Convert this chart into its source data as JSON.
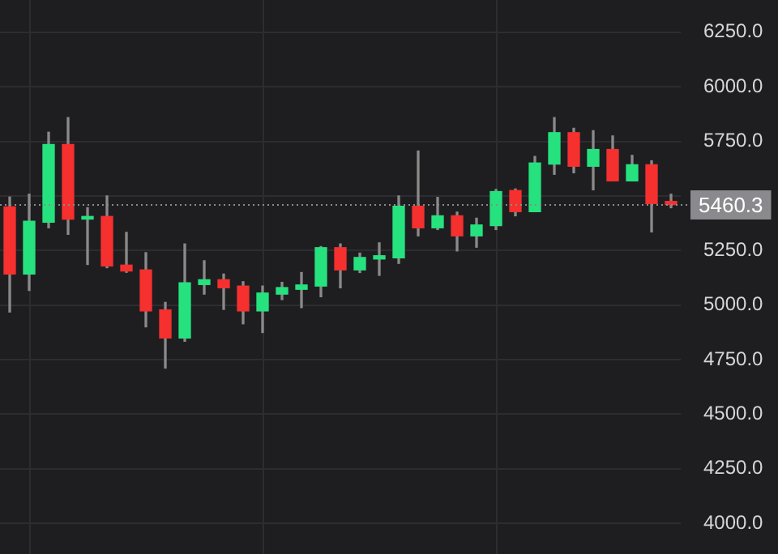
{
  "chart_data": {
    "type": "candlestick",
    "categories": [
      null,
      null,
      null,
      null,
      null,
      null,
      null,
      null,
      null,
      null,
      null,
      null,
      null,
      null,
      null,
      null,
      null,
      null,
      null,
      null,
      null,
      null,
      null,
      null,
      null,
      null,
      null,
      null,
      null,
      null,
      null,
      null,
      null,
      null,
      null
    ],
    "ohlc": [
      [
        5450,
        5495,
        4968,
        5142
      ],
      [
        5142,
        5508,
        5067,
        5384
      ],
      [
        5380,
        5792,
        5354,
        5736
      ],
      [
        5736,
        5859,
        5324,
        5394
      ],
      [
        5394,
        5446,
        5186,
        5406
      ],
      [
        5406,
        5500,
        5171,
        5179
      ],
      [
        5183,
        5333,
        5150,
        5156
      ],
      [
        5161,
        5240,
        4900,
        4973
      ],
      [
        4978,
        5012,
        4711,
        4849
      ],
      [
        4849,
        5280,
        4834,
        5102
      ],
      [
        5094,
        5203,
        5050,
        5116
      ],
      [
        5116,
        5142,
        4980,
        5079
      ],
      [
        5087,
        5107,
        4914,
        4973
      ],
      [
        4973,
        5087,
        4874,
        5055
      ],
      [
        5050,
        5104,
        5025,
        5080
      ],
      [
        5072,
        5149,
        4988,
        5092
      ],
      [
        5087,
        5268,
        5038,
        5263
      ],
      [
        5263,
        5280,
        5079,
        5161
      ],
      [
        5161,
        5238,
        5149,
        5218
      ],
      [
        5211,
        5285,
        5136,
        5226
      ],
      [
        5216,
        5500,
        5191,
        5453
      ],
      [
        5453,
        5706,
        5317,
        5354
      ],
      [
        5354,
        5493,
        5346,
        5409
      ],
      [
        5409,
        5426,
        5248,
        5317
      ],
      [
        5317,
        5398,
        5265,
        5367
      ],
      [
        5364,
        5530,
        5346,
        5520
      ],
      [
        5525,
        5532,
        5409,
        5428
      ],
      [
        5428,
        5681,
        5428,
        5651
      ],
      [
        5646,
        5859,
        5599,
        5790
      ],
      [
        5790,
        5810,
        5606,
        5636
      ],
      [
        5636,
        5799,
        5528,
        5713
      ],
      [
        5713,
        5775,
        5569,
        5569
      ],
      [
        5569,
        5686,
        5569,
        5643
      ],
      [
        5643,
        5661,
        5335,
        5465
      ],
      [
        5475,
        5508,
        5446,
        5460.3
      ]
    ],
    "ylim": [
      3859,
      6398
    ],
    "yticks": [
      {
        "value": 4000,
        "label": "4000.0"
      },
      {
        "value": 4250,
        "label": "4250.0"
      },
      {
        "value": 4500,
        "label": "4500.0"
      },
      {
        "value": 4750,
        "label": "4750.0"
      },
      {
        "value": 5000,
        "label": "5000.0"
      },
      {
        "value": 5250,
        "label": "5250.0"
      },
      {
        "value": 5500,
        "label": null
      },
      {
        "value": 5750,
        "label": "5750.0"
      },
      {
        "value": 6000,
        "label": "6000.0"
      },
      {
        "value": 6250,
        "label": "6250.0"
      }
    ],
    "ref_lines": [
      {
        "axis": "y",
        "value": 5460.3,
        "label": "5460.3",
        "color": "#8a8a8e",
        "line_style": "dotted"
      }
    ],
    "grid": true,
    "legend": false
  }
}
